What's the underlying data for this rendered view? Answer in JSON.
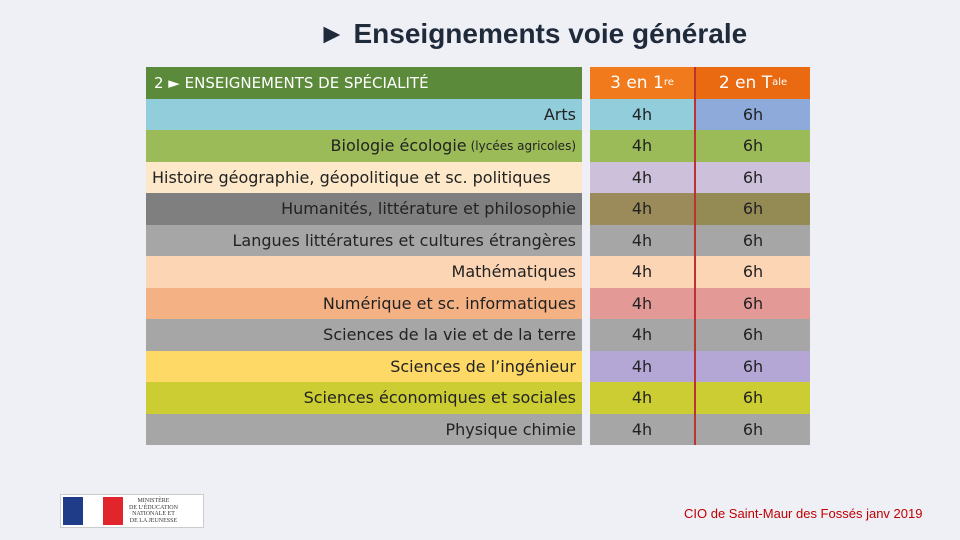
{
  "title": "► Enseignements voie générale",
  "table": {
    "header": {
      "label": "2 ► ENSEIGNEMENTS DE SPÉCIALITÉ",
      "col1": "3 en 1",
      "col1_sup": "re",
      "col2": "2 en T",
      "col2_sup": "ale"
    },
    "rows": [
      {
        "label": "Arts",
        "note": "",
        "c1": "4h",
        "c2": "6h",
        "colors": [
          "#92cddc",
          "#92cddc",
          "#8eaadb"
        ]
      },
      {
        "label": "Biologie écologie",
        "note": "(lycées agricoles)",
        "c1": "4h",
        "c2": "6h",
        "colors": [
          "#9bbb59",
          "#9bbb59",
          "#9bbb59"
        ]
      },
      {
        "label": "Histoire géographie, géopolitique et sc. politiques",
        "note": "",
        "c1": "4h",
        "c2": "6h",
        "colors": [
          "#fde9c9",
          "#ccc0da",
          "#ccc0da"
        ]
      },
      {
        "label": "Humanités, littérature et philosophie",
        "note": "",
        "c1": "4h",
        "c2": "6h",
        "colors": [
          "#7f7f7f",
          "#9b8b5a",
          "#948a54"
        ]
      },
      {
        "label": "Langues littératures et cultures étrangères",
        "note": "",
        "c1": "4h",
        "c2": "6h",
        "colors": [
          "#a6a6a6",
          "#a6a6a6",
          "#a6a6a6"
        ]
      },
      {
        "label": "Mathématiques",
        "note": "",
        "c1": "4h",
        "c2": "6h",
        "colors": [
          "#fcd5b4",
          "#fcd5b4",
          "#fcd5b4"
        ]
      },
      {
        "label": "Numérique et sc. informatiques",
        "note": "",
        "c1": "4h",
        "c2": "6h",
        "colors": [
          "#f4b183",
          "#e39a96",
          "#e39a96"
        ]
      },
      {
        "label": "Sciences de la vie et de la terre",
        "note": "",
        "c1": "4h",
        "c2": "6h",
        "colors": [
          "#a6a6a6",
          "#a6a6a6",
          "#a6a6a6"
        ]
      },
      {
        "label": "Sciences de l’ingénieur",
        "note": "",
        "c1": "4h",
        "c2": "6h",
        "colors": [
          "#ffd966",
          "#b4a7d6",
          "#b4a7d6"
        ]
      },
      {
        "label": "Sciences économiques et sociales",
        "note": "",
        "c1": "4h",
        "c2": "6h",
        "colors": [
          "#cccc33",
          "#cccc33",
          "#cccc33"
        ]
      },
      {
        "label": "Physique chimie",
        "note": "",
        "c1": "4h",
        "c2": "6h",
        "colors": [
          "#a6a6a6",
          "#a6a6a6",
          "#a6a6a6"
        ]
      }
    ]
  },
  "logo": {
    "lines": [
      "MINISTÈRE",
      "DE L’ÉDUCATION",
      "NATIONALE ET",
      "DE LA JEUNESSE"
    ]
  },
  "footer": "CIO de Saint-Maur des Fossés janv 2019"
}
